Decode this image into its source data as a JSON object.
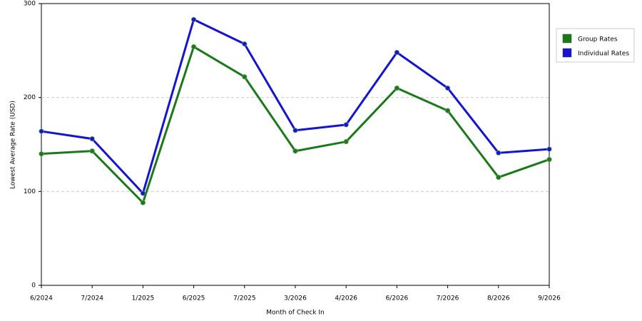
{
  "chart_data": {
    "type": "line",
    "x_label": "Month of Check In",
    "y_label": "Lowest Average Rate (USD)",
    "categories": [
      "6/2024",
      "7/2024",
      "1/2025",
      "6/2025",
      "7/2025",
      "3/2026",
      "4/2026",
      "6/2026",
      "7/2026",
      "8/2026",
      "9/2026"
    ],
    "series": [
      {
        "name": "Group Rates",
        "color": "#1a7a1a",
        "values": [
          140,
          143,
          88,
          254,
          222,
          143,
          153,
          210,
          186,
          115,
          134
        ]
      },
      {
        "name": "Individual Rates",
        "color": "#1414d2",
        "values": [
          164,
          156,
          98,
          283,
          257,
          165,
          171,
          248,
          210,
          141,
          145
        ]
      }
    ],
    "ylim": [
      0,
      300
    ],
    "yticks": [
      0,
      100,
      200,
      300
    ],
    "grid": true,
    "legend": "top-right"
  }
}
